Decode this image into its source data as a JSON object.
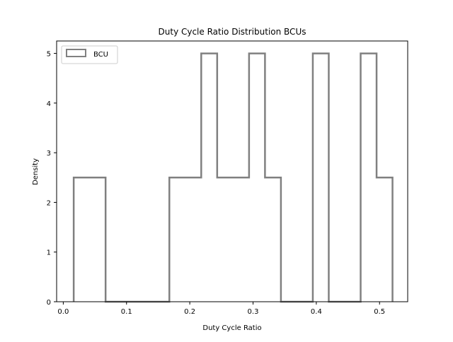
{
  "chart_data": {
    "type": "histogram",
    "title": "Duty Cycle Ratio Distribution BCUs",
    "xlabel": "Duty Cycle Ratio",
    "ylabel": "Density",
    "xlim": [
      -0.0105,
      0.5445
    ],
    "ylim": [
      0,
      5.25
    ],
    "xticks": [
      0.0,
      0.1,
      0.2,
      0.3,
      0.4,
      0.5
    ],
    "xtick_labels": [
      "0.0",
      "0.1",
      "0.2",
      "0.3",
      "0.4",
      "0.5"
    ],
    "yticks": [
      0,
      1,
      2,
      3,
      4,
      5
    ],
    "ytick_labels": [
      "0",
      "1",
      "2",
      "3",
      "4",
      "5"
    ],
    "series": [
      {
        "name": "BCU",
        "histtype": "step",
        "color": "#808080",
        "bin_edges": [
          0.0165,
          0.0417,
          0.0669,
          0.0921,
          0.1173,
          0.1425,
          0.1677,
          0.1929,
          0.2181,
          0.2433,
          0.2685,
          0.2937,
          0.3189,
          0.3441,
          0.3693,
          0.3945,
          0.4197,
          0.4449,
          0.4701,
          0.4953,
          0.5205
        ],
        "densities": [
          2.5,
          2.5,
          0,
          0,
          0,
          0,
          2.5,
          2.5,
          5,
          2.5,
          2.5,
          5,
          2.5,
          0,
          0,
          5,
          0,
          0,
          5,
          2.5
        ]
      }
    ],
    "legend_position": "top-left",
    "grid": false
  }
}
